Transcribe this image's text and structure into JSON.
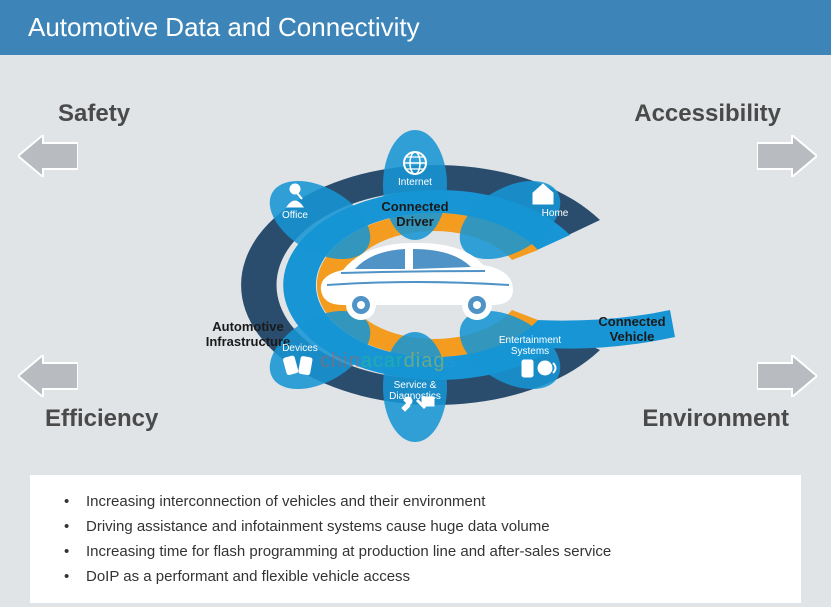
{
  "header": {
    "title": "Automotive Data and Connectivity"
  },
  "corners": {
    "tl": "Safety",
    "tr": "Accessibility",
    "bl": "Efficiency",
    "br": "Environment"
  },
  "rings": {
    "outer": {
      "label": "Automotive\nInfrastructure",
      "color": "#2a4d6e"
    },
    "middle": {
      "label": "Connected\nVehicle",
      "color": "#1795d4"
    },
    "inner": {
      "color": "#f39c1f"
    },
    "driver": {
      "label": "Connected\nDriver"
    }
  },
  "petals": [
    {
      "label": "Internet",
      "icon": "globe"
    },
    {
      "label": "Home",
      "icon": "home"
    },
    {
      "label": "Entertainment\nSystems",
      "icon": "media"
    },
    {
      "label": "Service &\nDiagnostics",
      "icon": "tools"
    },
    {
      "label": "Devices",
      "icon": "devices"
    },
    {
      "label": "Office",
      "icon": "person"
    }
  ],
  "bullets": [
    "Increasing interconnection of vehicles and their environment",
    "Driving assistance and infotainment systems cause huge data volume",
    "Increasing time for flash programming at production line and after-sales service",
    "DoIP as a performant and flexible vehicle access"
  ],
  "colors": {
    "header_bg": "#3d85b8",
    "page_bg": "#e0e4e7",
    "arrow_fill": "#b8bcc0",
    "arrow_stroke": "#ffffff",
    "petal_fill": "#1795d4",
    "car_color": "#ffffff",
    "corner_text": "#4a4a4a"
  },
  "watermark": {
    "text": "chinacardiags",
    "colors": [
      "#e94b35",
      "#e94b35",
      "#e94b35",
      "#e94b35",
      "#2ecc71",
      "#2ecc71",
      "#2ecc71",
      "#2ecc71",
      "#f1c40f",
      "#f1c40f",
      "#f1c40f",
      "#f1c40f",
      "#3498db"
    ]
  }
}
